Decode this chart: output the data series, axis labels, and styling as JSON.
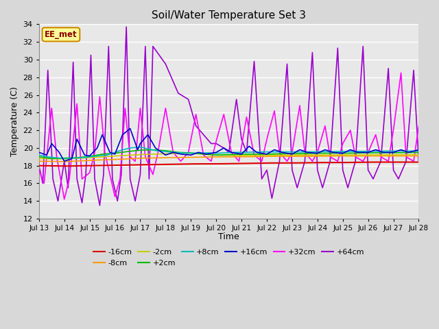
{
  "title": "Soil/Water Temperature Set 3",
  "xlabel": "Time",
  "ylabel": "Temperature (C)",
  "ylim": [
    12,
    34
  ],
  "yticks": [
    12,
    14,
    16,
    18,
    20,
    22,
    24,
    26,
    28,
    30,
    32,
    34
  ],
  "fig_bg": "#d8d8d8",
  "plot_bg": "#e8e8e8",
  "annotation": "EE_met",
  "annotation_bg": "#ffff99",
  "annotation_border": "#cc8800",
  "xtick_labels": [
    "Jul 13",
    "Jul 14",
    "Jul 15",
    "Jul 16",
    "Jul 17",
    "Jul 18",
    "Jul 19",
    "Jul 20",
    "Jul 21",
    "Jul 22",
    "Jul 23",
    "Jul 24",
    "Jul 25",
    "Jul 26",
    "Jul 27",
    "Jul 28"
  ],
  "series": {
    "-16cm": {
      "color": "#dd0000",
      "lw": 1.5
    },
    "-8cm": {
      "color": "#ff9900",
      "lw": 1.2
    },
    "-2cm": {
      "color": "#cccc00",
      "lw": 1.2
    },
    "+2cm": {
      "color": "#00bb00",
      "lw": 1.2
    },
    "+8cm": {
      "color": "#00bbbb",
      "lw": 1.2
    },
    "+16cm": {
      "color": "#0000cc",
      "lw": 1.2
    },
    "+32cm": {
      "color": "#ff00ff",
      "lw": 1.2
    },
    "+64cm": {
      "color": "#9900cc",
      "lw": 1.2
    }
  },
  "legend_order": [
    "-16cm",
    "-8cm",
    "-2cm",
    "+2cm",
    "+8cm",
    "+16cm",
    "+32cm",
    "+64cm"
  ]
}
